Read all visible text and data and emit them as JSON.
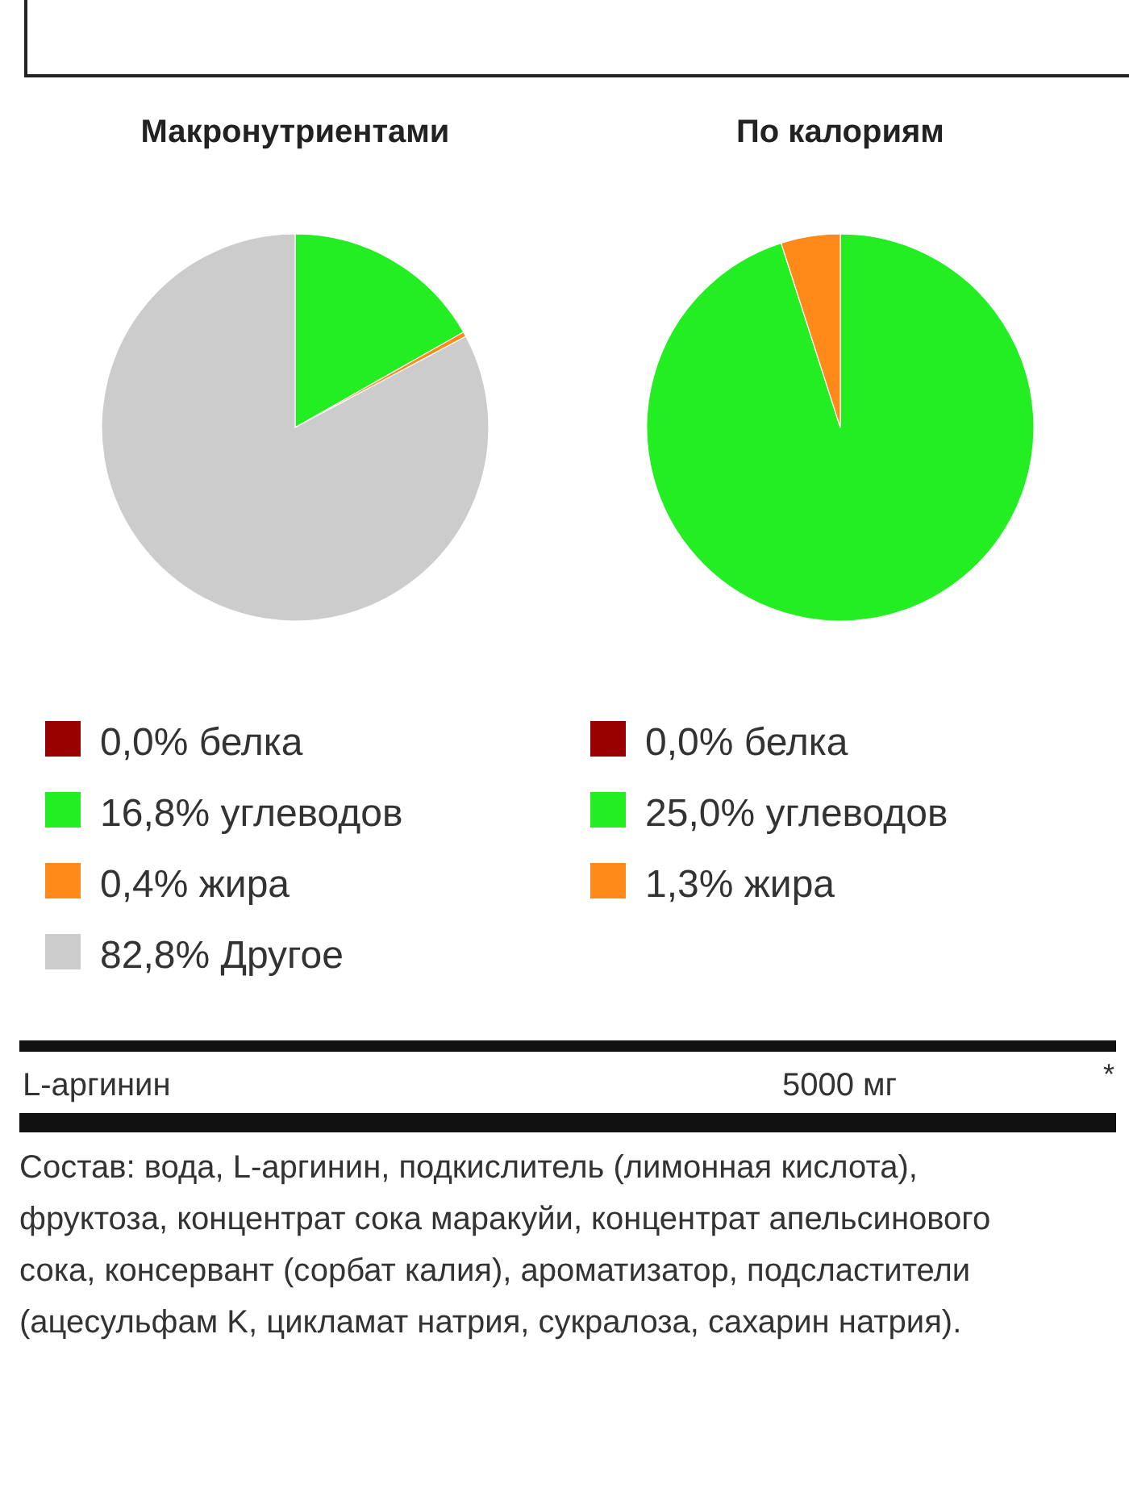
{
  "chart_data": [
    {
      "type": "pie",
      "title": "Макронутриентами",
      "categories": [
        "0,0% белка",
        "16,8% углеводов",
        "0,4% жира",
        "82,8% Другое"
      ],
      "values": [
        0,
        16.8,
        0.4,
        82.8
      ],
      "colors": [
        "#990000",
        "#22ee22",
        "#ff8a1a",
        "#cccccc"
      ],
      "legend": "bottom"
    },
    {
      "type": "pie",
      "title": "По калориям",
      "categories": [
        "0,0% белка",
        "25,0% углеводов",
        "1,3% жира"
      ],
      "values": [
        0,
        25.0,
        1.3
      ],
      "colors": [
        "#990000",
        "#22ee22",
        "#ff8a1a"
      ],
      "legend": "bottom"
    },
    {
      "type": "other",
      "annotations": [
        "L-аргинин",
        "5000 мг",
        "*",
        "Состав: вода, L-аргинин, подкислитель (лимонная кислота), фруктоза, концентрат сока маракуйи, концентрат апельсинового сока, консервант (сорбат калия), ароматизатор, подсластители (ацесульфам K, цикламат натрия, сукралоза, сахарин натрия)."
      ]
    }
  ]
}
